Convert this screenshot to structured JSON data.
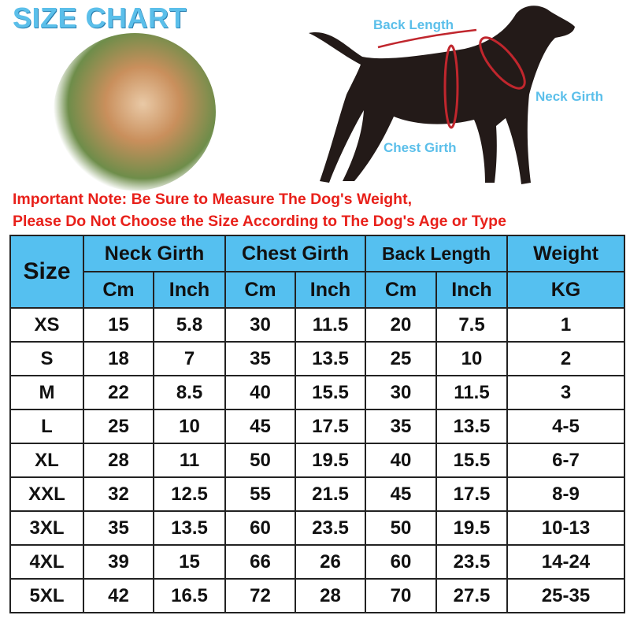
{
  "title": "SIZE CHART",
  "diagram": {
    "back_length": "Back Length",
    "neck_girth": "Neck Girth",
    "chest_girth": "Chest Girth"
  },
  "note": {
    "line1": "Important Note: Be Sure to Measure The Dog's Weight,",
    "line2": "Please Do Not Choose the Size According to The Dog's Age or Type",
    "color": "#e8201a"
  },
  "table": {
    "header": {
      "size": "Size",
      "neck": "Neck Girth",
      "chest": "Chest Girth",
      "back": "Back Length",
      "weight": "Weight",
      "cm": "Cm",
      "inch": "Inch",
      "kg": "KG"
    },
    "header_color": "#55c0f0",
    "rows": [
      [
        "XS",
        "15",
        "5.8",
        "30",
        "11.5",
        "20",
        "7.5",
        "1"
      ],
      [
        "S",
        "18",
        "7",
        "35",
        "13.5",
        "25",
        "10",
        "2"
      ],
      [
        "M",
        "22",
        "8.5",
        "40",
        "15.5",
        "30",
        "11.5",
        "3"
      ],
      [
        "L",
        "25",
        "10",
        "45",
        "17.5",
        "35",
        "13.5",
        "4-5"
      ],
      [
        "XL",
        "28",
        "11",
        "50",
        "19.5",
        "40",
        "15.5",
        "6-7"
      ],
      [
        "XXL",
        "32",
        "12.5",
        "55",
        "21.5",
        "45",
        "17.5",
        "8-9"
      ],
      [
        "3XL",
        "35",
        "13.5",
        "60",
        "23.5",
        "50",
        "19.5",
        "10-13"
      ],
      [
        "4XL",
        "39",
        "15",
        "66",
        "26",
        "60",
        "23.5",
        "14-24"
      ],
      [
        "5XL",
        "42",
        "16.5",
        "72",
        "28",
        "70",
        "27.5",
        "25-35"
      ]
    ]
  }
}
